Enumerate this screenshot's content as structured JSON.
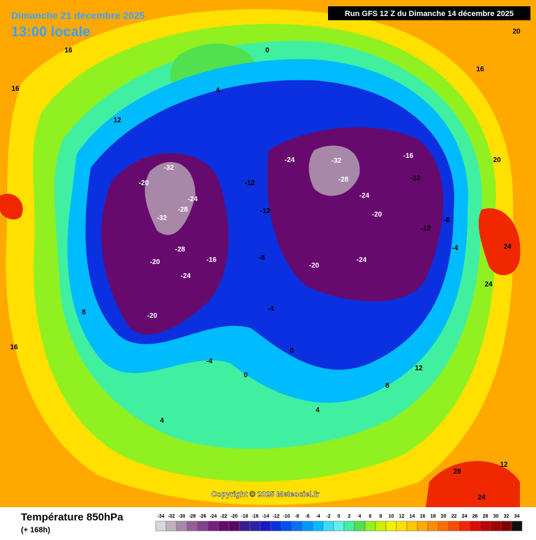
{
  "header": {
    "valid": "Dimanche 21 décembre 2025",
    "local": "13:00 locale",
    "run": "Run GFS 12 Z du Dimanche 14 décembre 2025"
  },
  "copyright": "Copyright © 2025 Meteociel.fr",
  "legend": {
    "title": "Température 850hPa",
    "lead": "(+ 168h)",
    "ticks": [
      -34,
      -32,
      -30,
      -28,
      -26,
      -24,
      -22,
      -20,
      -18,
      -16,
      -14,
      -12,
      -10,
      -8,
      -6,
      -4,
      -2,
      0,
      2,
      4,
      6,
      8,
      10,
      12,
      14,
      16,
      18,
      20,
      22,
      24,
      26,
      28,
      30,
      32,
      34
    ],
    "colors": [
      "#d8d8d8",
      "#c0b0c0",
      "#a888a8",
      "#946094",
      "#84408a",
      "#74207c",
      "#660a6e",
      "#560a62",
      "#3c1a90",
      "#2c22aa",
      "#1a1ac8",
      "#0a30e0",
      "#0050f0",
      "#0070ff",
      "#0098ff",
      "#00bcff",
      "#38dcff",
      "#60f0e8",
      "#40f0a0",
      "#50e050",
      "#90f020",
      "#c8f000",
      "#f0f000",
      "#ffe000",
      "#ffc800",
      "#ffa800",
      "#ff8c00",
      "#ff6c00",
      "#ff4c00",
      "#f02800",
      "#e00a00",
      "#c00000",
      "#a00000",
      "#800000",
      "#101010"
    ]
  },
  "map_labels": [
    "-32",
    "-28",
    "-32",
    "-24",
    "-20",
    "-28",
    "-20",
    "-24",
    "-20",
    "-16",
    "-12",
    "-12",
    "-8",
    "-4",
    "-24",
    "-32",
    "-28",
    "-24",
    "-20",
    "-24",
    "-16",
    "-20",
    "-12",
    "-12",
    "-8",
    "-4",
    "0",
    "4",
    "0",
    "4",
    "8",
    "12",
    "16",
    "16",
    "12",
    "16",
    "20",
    "24",
    "20",
    "24",
    "28",
    "24",
    "12",
    "16",
    "8",
    "4",
    "0",
    "-4"
  ]
}
